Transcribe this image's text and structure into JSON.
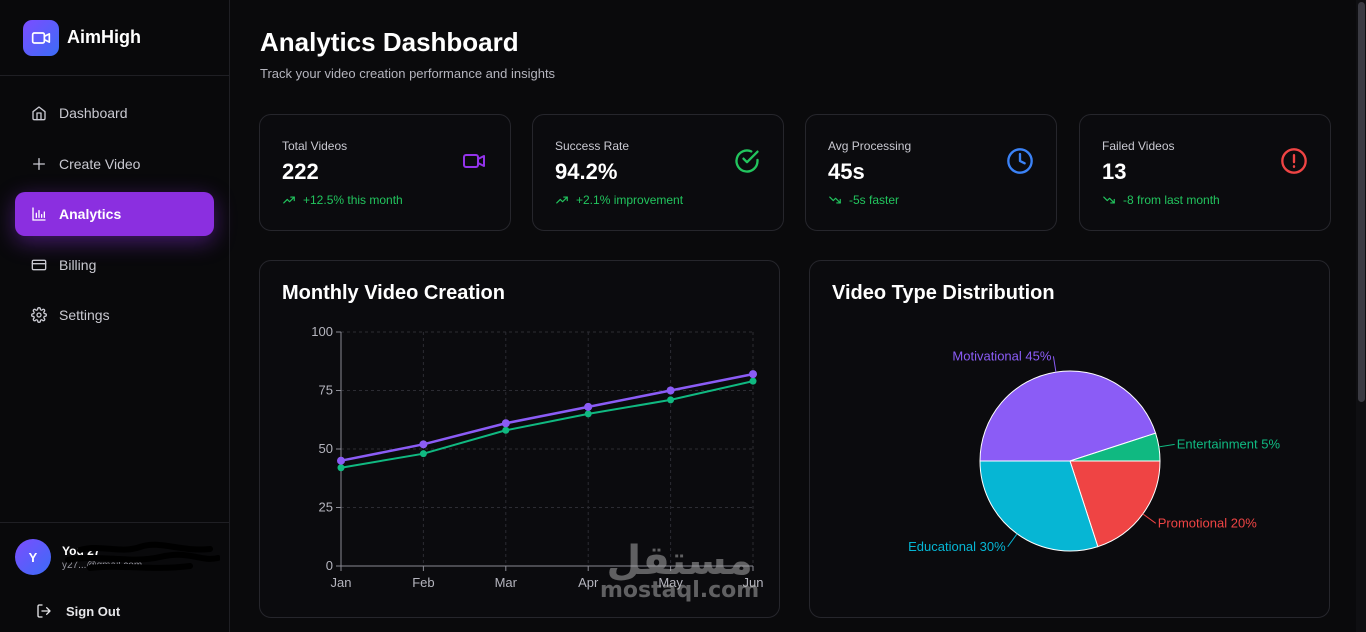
{
  "brand": {
    "name": "AimHigh",
    "logo_icon": "video-camera-icon"
  },
  "sidebar": {
    "items": [
      {
        "label": "Dashboard",
        "icon": "home-icon",
        "active": false
      },
      {
        "label": "Create Video",
        "icon": "plus-icon",
        "active": false
      },
      {
        "label": "Analytics",
        "icon": "bar-chart-icon",
        "active": true
      },
      {
        "label": "Billing",
        "icon": "credit-card-icon",
        "active": false
      },
      {
        "label": "Settings",
        "icon": "gear-icon",
        "active": false
      }
    ],
    "user": {
      "initial": "Y",
      "name": "You 27",
      "email": "y27...@gmail.com"
    },
    "signout_label": "Sign Out"
  },
  "header": {
    "title": "Analytics Dashboard",
    "subtitle": "Track your video creation performance and insights"
  },
  "stats": [
    {
      "label": "Total Videos",
      "value": "222",
      "trend": "+12.5% this month",
      "trend_dir": "up",
      "icon": "video-camera-icon",
      "icon_color": "#9333ea"
    },
    {
      "label": "Success Rate",
      "value": "94.2%",
      "trend": "+2.1% improvement",
      "trend_dir": "up",
      "icon": "check-circle-icon",
      "icon_color": "#22c55e"
    },
    {
      "label": "Avg Processing",
      "value": "45s",
      "trend": "-5s faster",
      "trend_dir": "down",
      "icon": "clock-icon",
      "icon_color": "#3b82f6"
    },
    {
      "label": "Failed Videos",
      "value": "13",
      "trend": "-8 from last month",
      "trend_dir": "down",
      "icon": "alert-circle-icon",
      "icon_color": "#ef4444"
    }
  ],
  "colors": {
    "accent": "#8b2fe0",
    "success": "#22c55e",
    "purple_line": "#8b5cf6",
    "green_line": "#10b981"
  },
  "watermark": {
    "arabic": "مستقل",
    "latin": "mostaql.com"
  },
  "chart_data": [
    {
      "type": "line",
      "title": "Monthly Video Creation",
      "categories": [
        "Jan",
        "Feb",
        "Mar",
        "Apr",
        "May",
        "Jun"
      ],
      "series": [
        {
          "values": [
            45,
            52,
            61,
            68,
            75,
            82
          ],
          "color": "#8b5cf6"
        },
        {
          "values": [
            42,
            48,
            58,
            65,
            71,
            79
          ],
          "color": "#10b981"
        }
      ],
      "ylim": [
        0,
        100
      ],
      "yticks": [
        0,
        25,
        50,
        75,
        100
      ],
      "grid": true
    },
    {
      "type": "pie",
      "title": "Video Type Distribution",
      "slices": [
        {
          "label": "Motivational 45%",
          "value": 45,
          "color": "#8b5cf6"
        },
        {
          "label": "Entertainment 5%",
          "value": 5,
          "color": "#10b981"
        },
        {
          "label": "Promotional 20%",
          "value": 20,
          "color": "#ef4444"
        },
        {
          "label": "Educational 30%",
          "value": 30,
          "color": "#06b6d4"
        }
      ]
    }
  ]
}
